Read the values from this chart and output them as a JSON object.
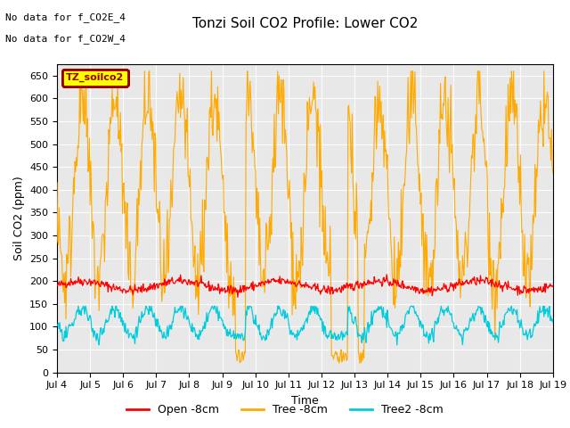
{
  "title": "Tonzi Soil CO2 Profile: Lower CO2",
  "xlabel": "Time",
  "ylabel": "Soil CO2 (ppm)",
  "ylim": [
    0,
    675
  ],
  "yticks": [
    0,
    50,
    100,
    150,
    200,
    250,
    300,
    350,
    400,
    450,
    500,
    550,
    600,
    650
  ],
  "xticklabels": [
    "Jul 4",
    "Jul 5",
    "Jul 6",
    "Jul 7",
    "Jul 8",
    "Jul 9",
    "Jul 10",
    "Jul 11",
    "Jul 12",
    "Jul 13",
    "Jul 14",
    "Jul 15",
    "Jul 16",
    "Jul 17",
    "Jul 18",
    "Jul 19"
  ],
  "colors": {
    "open": "#ff0000",
    "tree": "#ffaa00",
    "tree2": "#00ccdd"
  },
  "legend_label": "TZ_soilco2",
  "legend_bg": "#ffff00",
  "legend_edge": "#990000",
  "no_data_texts": [
    "No data for f_CO2E_4",
    "No data for f_CO2W_4"
  ],
  "legend_entries": [
    "Open -8cm",
    "Tree -8cm",
    "Tree2 -8cm"
  ],
  "bg_color": "#e8e8e8"
}
